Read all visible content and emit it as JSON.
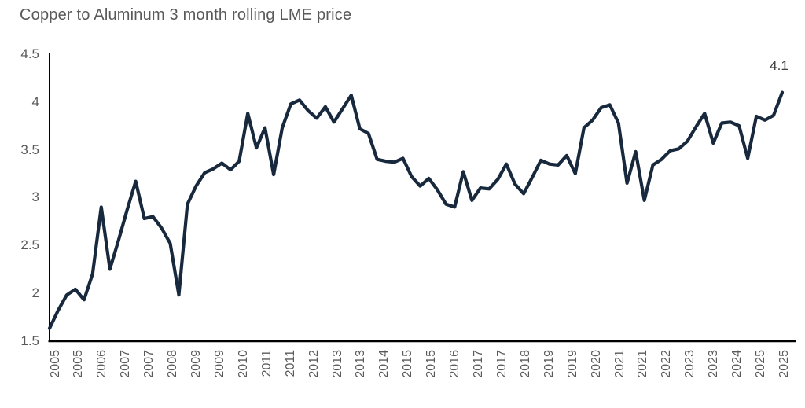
{
  "title": "Copper to Aluminum 3 month rolling LME price",
  "end_label": "4.1",
  "colors": {
    "line": "#18293e",
    "axis": "#000000",
    "tick_text": "#595959",
    "title_text": "#595959",
    "end_label_text": "#404040",
    "background": "#ffffff"
  },
  "chart_data": {
    "type": "line",
    "title": "Copper to Aluminum 3 month rolling LME price",
    "series": [
      {
        "name": "Copper to Aluminum 3 month rolling LME price",
        "values": [
          1.63,
          1.82,
          1.98,
          2.04,
          1.93,
          2.2,
          2.9,
          2.25,
          2.55,
          2.87,
          3.17,
          2.78,
          2.8,
          2.68,
          2.52,
          1.98,
          2.93,
          3.12,
          3.26,
          3.3,
          3.36,
          3.29,
          3.38,
          3.88,
          3.52,
          3.73,
          3.24,
          3.73,
          3.98,
          4.02,
          3.91,
          3.83,
          3.95,
          3.79,
          3.93,
          4.07,
          3.72,
          3.67,
          3.4,
          3.38,
          3.37,
          3.41,
          3.22,
          3.12,
          3.2,
          3.08,
          2.93,
          2.9,
          3.27,
          2.97,
          3.1,
          3.09,
          3.19,
          3.35,
          3.14,
          3.04,
          3.21,
          3.39,
          3.35,
          3.34,
          3.44,
          3.25,
          3.73,
          3.81,
          3.94,
          3.97,
          3.78,
          3.15,
          3.48,
          2.97,
          3.34,
          3.4,
          3.49,
          3.51,
          3.59,
          3.74,
          3.88,
          3.57,
          3.78,
          3.79,
          3.75,
          3.41,
          3.85,
          3.81,
          3.86,
          4.1
        ]
      }
    ],
    "x_tick_labels": [
      "2005",
      "2005",
      "2006",
      "2007",
      "2007",
      "2008",
      "2009",
      "2009",
      "2010",
      "2011",
      "2011",
      "2012",
      "2013",
      "2013",
      "2014",
      "2015",
      "2015",
      "2016",
      "2017",
      "2017",
      "2018",
      "2019",
      "2019",
      "2020",
      "2021",
      "2021",
      "2022",
      "2023",
      "2023",
      "2024",
      "2025",
      "2025"
    ],
    "x_range": [
      "2005",
      "2025"
    ],
    "ylim": [
      1.5,
      4.5
    ],
    "y_tick_labels": [
      "4.5",
      "4",
      "3.5",
      "3",
      "2.5",
      "2",
      "1.5"
    ],
    "grid": false,
    "legend_position": "none",
    "end_annotation": "4.1"
  }
}
